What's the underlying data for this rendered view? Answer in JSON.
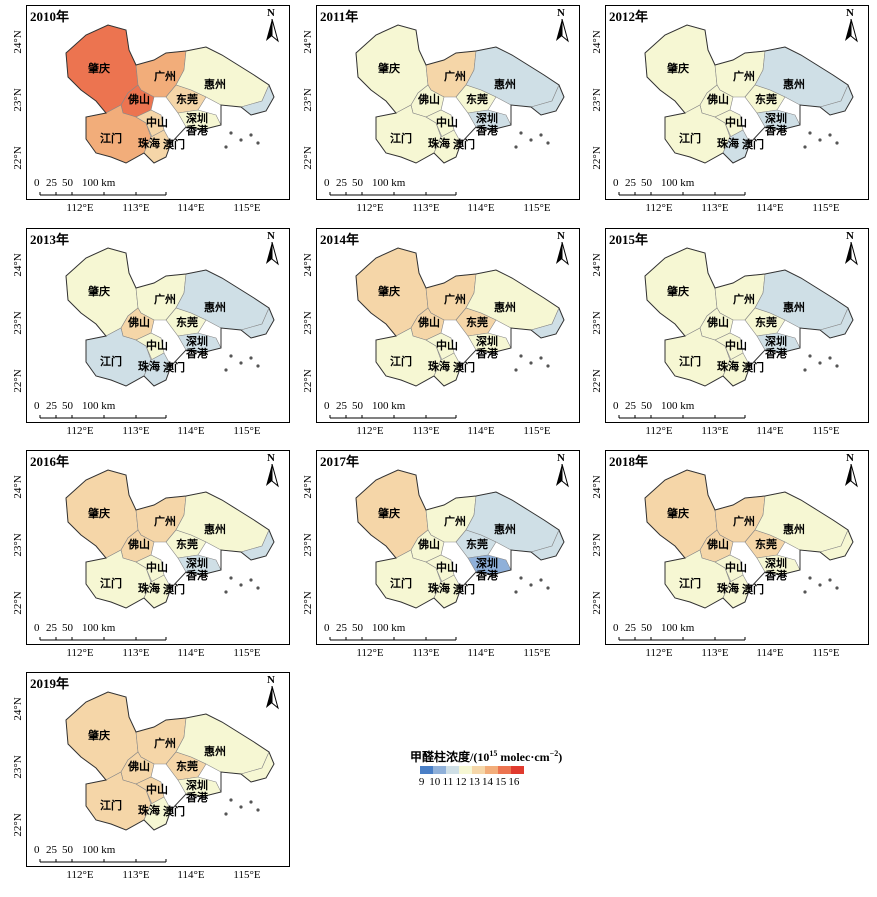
{
  "cities": [
    "肇庆",
    "广州",
    "惠州",
    "佛山",
    "东莞",
    "中山",
    "深圳",
    "江门",
    "珠海",
    "澳门",
    "香港"
  ],
  "scale_bar": {
    "labels": [
      "0",
      "25",
      "50",
      "100 km"
    ]
  },
  "north_label": "N",
  "lat_ticks": [
    "24°N",
    "23°N",
    "22°N"
  ],
  "lon_ticks": [
    "112°E",
    "113°E",
    "114°E",
    "115°E"
  ],
  "legend": {
    "title": "甲醛柱浓度/(10",
    "title_sup": "15",
    "title_unit": " molec·cm",
    "title_exp": "−2",
    "title_close": ")",
    "values": [
      "9",
      "10",
      "11",
      "12",
      "13",
      "14",
      "15",
      "16"
    ],
    "colors": [
      "#4a7fc6",
      "#8fb0d9",
      "#cfdfe6",
      "#f6f7d3",
      "#f5d6a8",
      "#f2ad7a",
      "#ec7450",
      "#e03a2e"
    ]
  },
  "panels": [
    {
      "year": "2010年",
      "regions": {
        "zhaoqing": "#ec7450",
        "guangzhou": "#f2ad7a",
        "foshan": "#ec7450",
        "huizhou": "#f6f7d3",
        "dongguan": "#f5d6a8",
        "jiangmen": "#f2ad7a",
        "zhongshan": "#f5d6a8",
        "shenzhen": "#f6f7d3",
        "zhuhai": "#f5d6a8",
        "east": "#cfdfe6"
      }
    },
    {
      "year": "2011年",
      "regions": {
        "zhaoqing": "#f6f7d3",
        "guangzhou": "#f5d6a8",
        "foshan": "#f6f7d3",
        "huizhou": "#cfdfe6",
        "dongguan": "#f6f7d3",
        "jiangmen": "#f6f7d3",
        "zhongshan": "#f6f7d3",
        "shenzhen": "#cfdfe6",
        "zhuhai": "#f6f7d3",
        "east": "#cfdfe6"
      }
    },
    {
      "year": "2012年",
      "regions": {
        "zhaoqing": "#f6f7d3",
        "guangzhou": "#f6f7d3",
        "foshan": "#f6f7d3",
        "huizhou": "#cfdfe6",
        "dongguan": "#f6f7d3",
        "jiangmen": "#f6f7d3",
        "zhongshan": "#f6f7d3",
        "shenzhen": "#cfdfe6",
        "zhuhai": "#cfdfe6",
        "east": "#cfdfe6"
      }
    },
    {
      "year": "2013年",
      "regions": {
        "zhaoqing": "#f6f7d3",
        "guangzhou": "#f6f7d3",
        "foshan": "#f5d6a8",
        "huizhou": "#cfdfe6",
        "dongguan": "#f6f7d3",
        "jiangmen": "#cfdfe6",
        "zhongshan": "#f6f7d3",
        "shenzhen": "#cfdfe6",
        "zhuhai": "#cfdfe6",
        "east": "#cfdfe6"
      }
    },
    {
      "year": "2014年",
      "regions": {
        "zhaoqing": "#f5d6a8",
        "guangzhou": "#f5d6a8",
        "foshan": "#f5d6a8",
        "huizhou": "#f6f7d3",
        "dongguan": "#f5d6a8",
        "jiangmen": "#f6f7d3",
        "zhongshan": "#f6f7d3",
        "shenzhen": "#f6f7d3",
        "zhuhai": "#f6f7d3",
        "east": "#cfdfe6"
      }
    },
    {
      "year": "2015年",
      "regions": {
        "zhaoqing": "#f6f7d3",
        "guangzhou": "#f6f7d3",
        "foshan": "#f6f7d3",
        "huizhou": "#cfdfe6",
        "dongguan": "#f6f7d3",
        "jiangmen": "#f6f7d3",
        "zhongshan": "#f6f7d3",
        "shenzhen": "#cfdfe6",
        "zhuhai": "#f6f7d3",
        "east": "#cfdfe6"
      }
    },
    {
      "year": "2016年",
      "regions": {
        "zhaoqing": "#f5d6a8",
        "guangzhou": "#f5d6a8",
        "foshan": "#f5d6a8",
        "huizhou": "#f6f7d3",
        "dongguan": "#f6f7d3",
        "jiangmen": "#f6f7d3",
        "zhongshan": "#f6f7d3",
        "shenzhen": "#cfdfe6",
        "zhuhai": "#f6f7d3",
        "east": "#cfdfe6"
      }
    },
    {
      "year": "2017年",
      "regions": {
        "zhaoqing": "#f5d6a8",
        "guangzhou": "#f6f7d3",
        "foshan": "#f6f7d3",
        "huizhou": "#cfdfe6",
        "dongguan": "#cfdfe6",
        "jiangmen": "#f6f7d3",
        "zhongshan": "#f6f7d3",
        "shenzhen": "#8fb0d9",
        "zhuhai": "#f6f7d3",
        "east": "#cfdfe6"
      }
    },
    {
      "year": "2018年",
      "regions": {
        "zhaoqing": "#f5d6a8",
        "guangzhou": "#f5d6a8",
        "foshan": "#f5d6a8",
        "huizhou": "#f6f7d3",
        "dongguan": "#f5d6a8",
        "jiangmen": "#f6f7d3",
        "zhongshan": "#f6f7d3",
        "shenzhen": "#f6f7d3",
        "zhuhai": "#f6f7d3",
        "east": "#f6f7d3"
      }
    },
    {
      "year": "2019年",
      "regions": {
        "zhaoqing": "#f5d6a8",
        "guangzhou": "#f5d6a8",
        "foshan": "#f5d6a8",
        "huizhou": "#f6f7d3",
        "dongguan": "#f5d6a8",
        "jiangmen": "#f5d6a8",
        "zhongshan": "#f5d6a8",
        "shenzhen": "#f6f7d3",
        "zhuhai": "#f6f7d3",
        "east": "#f6f7d3"
      }
    }
  ]
}
